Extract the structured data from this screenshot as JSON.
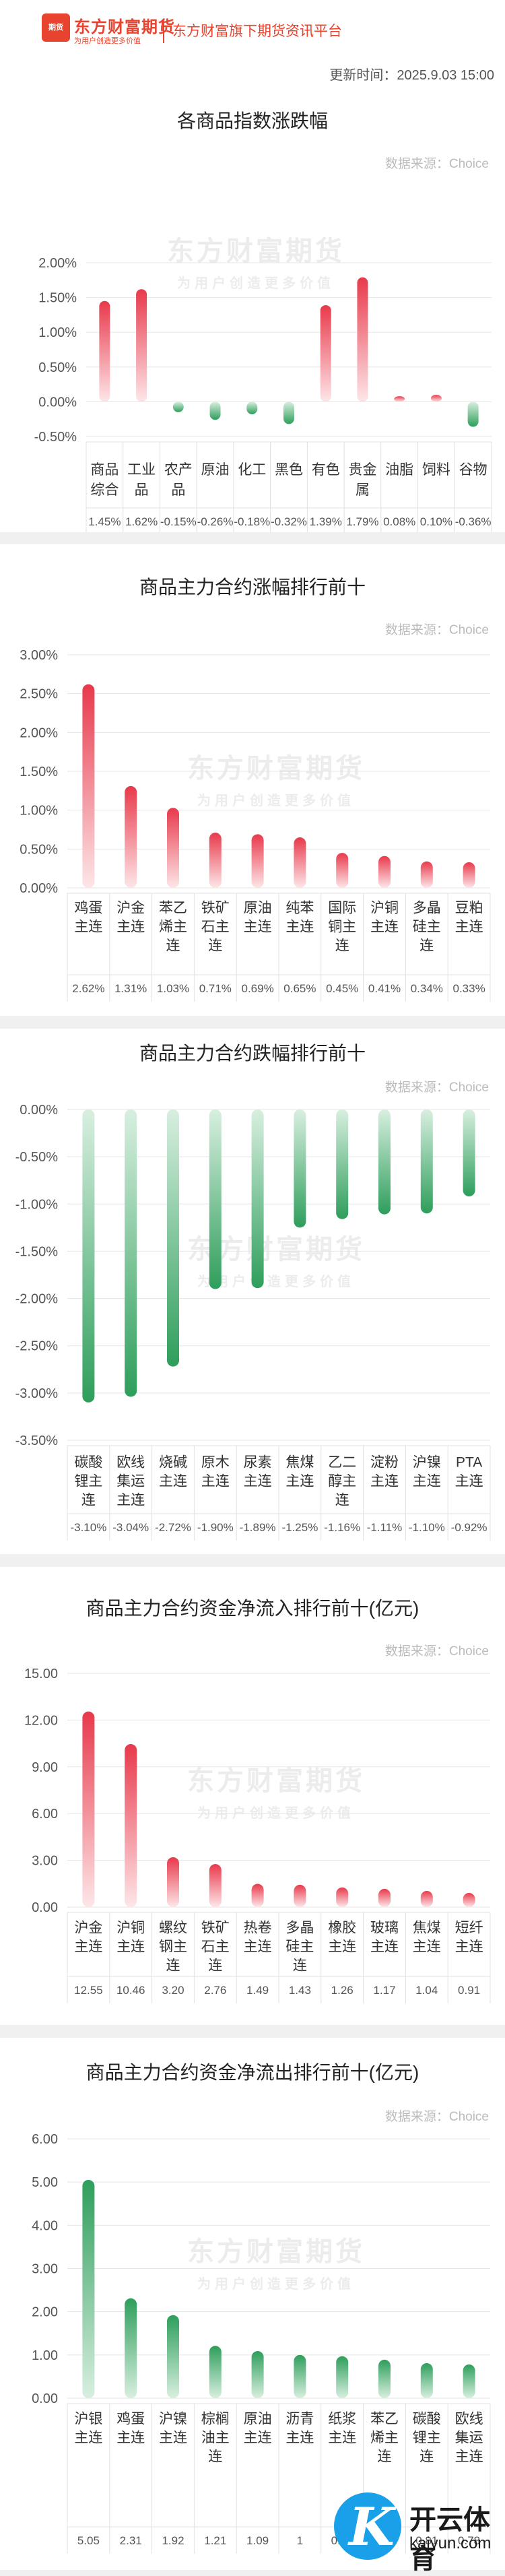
{
  "header": {
    "logo_mark": "期货",
    "logo_name": "东方财富期货",
    "logo_slogan": "为用户创造更多价值",
    "platform": "东方财富旗下期货资讯平台",
    "updated": "更新时间：2025.9.03 15:00"
  },
  "source_label": "数据来源：Choice",
  "watermark": {
    "main": "东方财富期货",
    "sub": "为用户创造更多价值"
  },
  "corner_logo": {
    "title": "开云体育",
    "sub": "kaiyun.com"
  },
  "colors": {
    "up_top": "#e8394b",
    "up_bottom": "#fde6e8",
    "down_top": "#2e9e5b",
    "down_bottom": "#d8efe0",
    "axis_text": "#555555",
    "grid": "#e5e5e5"
  },
  "chart_data": [
    {
      "type": "bar",
      "title": "各商品指数涨跌幅",
      "categories": [
        "商品\n综合",
        "工业\n品",
        "农产\n品",
        "原油",
        "化工",
        "黑色",
        "有色",
        "贵金\n属",
        "油脂",
        "饲料",
        "谷物"
      ],
      "values": [
        1.45,
        1.62,
        -0.15,
        -0.26,
        -0.18,
        -0.32,
        1.39,
        1.79,
        0.08,
        0.1,
        -0.36
      ],
      "labels": [
        "1.45%",
        "1.62%",
        "-0.15%",
        "-0.26%",
        "-0.18%",
        "-0.32%",
        "1.39%",
        "1.79%",
        "0.08%",
        "0.10%",
        "-0.36%"
      ],
      "yticks": [
        "2.00%",
        "1.50%",
        "1.00%",
        "0.50%",
        "0.00%",
        "-0.50%"
      ],
      "ylim": [
        -0.5,
        2.0
      ],
      "mode": "mixed"
    },
    {
      "type": "bar",
      "title": "商品主力合约涨幅排行前十",
      "categories": [
        "鸡蛋\n主连",
        "沪金\n主连",
        "苯乙\n烯主\n连",
        "铁矿\n石主\n连",
        "原油\n主连",
        "纯苯\n主连",
        "国际\n铜主\n连",
        "沪铜\n主连",
        "多晶\n硅主\n连",
        "豆粕\n主连"
      ],
      "values": [
        2.62,
        1.31,
        1.03,
        0.71,
        0.69,
        0.65,
        0.45,
        0.41,
        0.34,
        0.33
      ],
      "labels": [
        "2.62%",
        "1.31%",
        "1.03%",
        "0.71%",
        "0.69%",
        "0.65%",
        "0.45%",
        "0.41%",
        "0.34%",
        "0.33%"
      ],
      "yticks": [
        "3.00%",
        "2.50%",
        "2.00%",
        "1.50%",
        "1.00%",
        "0.50%",
        "0.00%"
      ],
      "ylim": [
        0,
        3.0
      ],
      "mode": "up"
    },
    {
      "type": "bar",
      "title": "商品主力合约跌幅排行前十",
      "categories": [
        "碳酸\n锂主\n连",
        "欧线\n集运\n主连",
        "烧碱\n主连",
        "原木\n主连",
        "尿素\n主连",
        "焦煤\n主连",
        "乙二\n醇主\n连",
        "淀粉\n主连",
        "沪镍\n主连",
        "PTA\n主连"
      ],
      "values": [
        -3.1,
        -3.04,
        -2.72,
        -1.9,
        -1.89,
        -1.25,
        -1.16,
        -1.11,
        -1.1,
        -0.92
      ],
      "labels": [
        "-3.10%",
        "-3.04%",
        "-2.72%",
        "-1.90%",
        "-1.89%",
        "-1.25%",
        "-1.16%",
        "-1.11%",
        "-1.10%",
        "-0.92%"
      ],
      "yticks": [
        "0.00%",
        "-0.50%",
        "-1.00%",
        "-1.50%",
        "-2.00%",
        "-2.50%",
        "-3.00%",
        "-3.50%"
      ],
      "ylim": [
        -3.5,
        0
      ],
      "mode": "down"
    },
    {
      "type": "bar",
      "title": "商品主力合约资金净流入排行前十(亿元)",
      "categories": [
        "沪金\n主连",
        "沪铜\n主连",
        "螺纹\n钢主\n连",
        "铁矿\n石主\n连",
        "热卷\n主连",
        "多晶\n硅主\n连",
        "橡胶\n主连",
        "玻璃\n主连",
        "焦煤\n主连",
        "短纤\n主连"
      ],
      "values": [
        12.55,
        10.46,
        3.2,
        2.76,
        1.49,
        1.43,
        1.26,
        1.17,
        1.04,
        0.91
      ],
      "labels": [
        "12.55",
        "10.46",
        "3.20",
        "2.76",
        "1.49",
        "1.43",
        "1.26",
        "1.17",
        "1.04",
        "0.91"
      ],
      "yticks": [
        "15.00",
        "12.00",
        "9.00",
        "6.00",
        "3.00",
        "0.00"
      ],
      "ylim": [
        0,
        15
      ],
      "mode": "up"
    },
    {
      "type": "bar",
      "title": "商品主力合约资金净流出排行前十(亿元)",
      "categories": [
        "沪银\n主连",
        "鸡蛋\n主连",
        "沪镍\n主连",
        "棕榈\n油主\n连",
        "原油\n主连",
        "沥青\n主连",
        "纸浆\n主连",
        "苯乙\n烯主\n连",
        "碳酸\n锂主\n连",
        "欧线\n集运\n主连"
      ],
      "values": [
        5.05,
        2.31,
        1.92,
        1.21,
        1.09,
        1,
        0.97,
        0.89,
        0.81,
        0.78
      ],
      "labels": [
        "5.05",
        "2.31",
        "1.92",
        "1.21",
        "1.09",
        "1",
        "0.97",
        "0.89",
        "0.81",
        "0.78"
      ],
      "yticks": [
        "6.00",
        "5.00",
        "4.00",
        "3.00",
        "2.00",
        "1.00",
        "0.00"
      ],
      "ylim": [
        0,
        6
      ],
      "mode": "down_pos"
    }
  ]
}
